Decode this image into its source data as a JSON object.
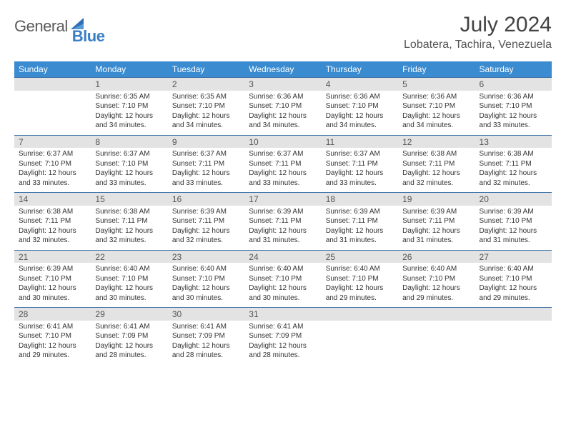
{
  "brand": {
    "part1": "General",
    "part2": "Blue"
  },
  "title": "July 2024",
  "location": "Lobatera, Tachira, Venezuela",
  "colors": {
    "header_bg": "#3a8bd0",
    "header_text": "#ffffff",
    "date_bg": "#e3e3e3",
    "row_border": "#3a6fa5",
    "logo_gray": "#5a5a5a",
    "logo_blue": "#3a7fc4"
  },
  "dayNames": [
    "Sunday",
    "Monday",
    "Tuesday",
    "Wednesday",
    "Thursday",
    "Friday",
    "Saturday"
  ],
  "weeks": [
    {
      "dates": [
        "",
        "1",
        "2",
        "3",
        "4",
        "5",
        "6"
      ],
      "cells": [
        null,
        {
          "sunrise": "6:35 AM",
          "sunset": "7:10 PM",
          "daylight": "12 hours and 34 minutes."
        },
        {
          "sunrise": "6:35 AM",
          "sunset": "7:10 PM",
          "daylight": "12 hours and 34 minutes."
        },
        {
          "sunrise": "6:36 AM",
          "sunset": "7:10 PM",
          "daylight": "12 hours and 34 minutes."
        },
        {
          "sunrise": "6:36 AM",
          "sunset": "7:10 PM",
          "daylight": "12 hours and 34 minutes."
        },
        {
          "sunrise": "6:36 AM",
          "sunset": "7:10 PM",
          "daylight": "12 hours and 34 minutes."
        },
        {
          "sunrise": "6:36 AM",
          "sunset": "7:10 PM",
          "daylight": "12 hours and 33 minutes."
        }
      ]
    },
    {
      "dates": [
        "7",
        "8",
        "9",
        "10",
        "11",
        "12",
        "13"
      ],
      "cells": [
        {
          "sunrise": "6:37 AM",
          "sunset": "7:10 PM",
          "daylight": "12 hours and 33 minutes."
        },
        {
          "sunrise": "6:37 AM",
          "sunset": "7:10 PM",
          "daylight": "12 hours and 33 minutes."
        },
        {
          "sunrise": "6:37 AM",
          "sunset": "7:11 PM",
          "daylight": "12 hours and 33 minutes."
        },
        {
          "sunrise": "6:37 AM",
          "sunset": "7:11 PM",
          "daylight": "12 hours and 33 minutes."
        },
        {
          "sunrise": "6:37 AM",
          "sunset": "7:11 PM",
          "daylight": "12 hours and 33 minutes."
        },
        {
          "sunrise": "6:38 AM",
          "sunset": "7:11 PM",
          "daylight": "12 hours and 32 minutes."
        },
        {
          "sunrise": "6:38 AM",
          "sunset": "7:11 PM",
          "daylight": "12 hours and 32 minutes."
        }
      ]
    },
    {
      "dates": [
        "14",
        "15",
        "16",
        "17",
        "18",
        "19",
        "20"
      ],
      "cells": [
        {
          "sunrise": "6:38 AM",
          "sunset": "7:11 PM",
          "daylight": "12 hours and 32 minutes."
        },
        {
          "sunrise": "6:38 AM",
          "sunset": "7:11 PM",
          "daylight": "12 hours and 32 minutes."
        },
        {
          "sunrise": "6:39 AM",
          "sunset": "7:11 PM",
          "daylight": "12 hours and 32 minutes."
        },
        {
          "sunrise": "6:39 AM",
          "sunset": "7:11 PM",
          "daylight": "12 hours and 31 minutes."
        },
        {
          "sunrise": "6:39 AM",
          "sunset": "7:11 PM",
          "daylight": "12 hours and 31 minutes."
        },
        {
          "sunrise": "6:39 AM",
          "sunset": "7:11 PM",
          "daylight": "12 hours and 31 minutes."
        },
        {
          "sunrise": "6:39 AM",
          "sunset": "7:10 PM",
          "daylight": "12 hours and 31 minutes."
        }
      ]
    },
    {
      "dates": [
        "21",
        "22",
        "23",
        "24",
        "25",
        "26",
        "27"
      ],
      "cells": [
        {
          "sunrise": "6:39 AM",
          "sunset": "7:10 PM",
          "daylight": "12 hours and 30 minutes."
        },
        {
          "sunrise": "6:40 AM",
          "sunset": "7:10 PM",
          "daylight": "12 hours and 30 minutes."
        },
        {
          "sunrise": "6:40 AM",
          "sunset": "7:10 PM",
          "daylight": "12 hours and 30 minutes."
        },
        {
          "sunrise": "6:40 AM",
          "sunset": "7:10 PM",
          "daylight": "12 hours and 30 minutes."
        },
        {
          "sunrise": "6:40 AM",
          "sunset": "7:10 PM",
          "daylight": "12 hours and 29 minutes."
        },
        {
          "sunrise": "6:40 AM",
          "sunset": "7:10 PM",
          "daylight": "12 hours and 29 minutes."
        },
        {
          "sunrise": "6:40 AM",
          "sunset": "7:10 PM",
          "daylight": "12 hours and 29 minutes."
        }
      ]
    },
    {
      "dates": [
        "28",
        "29",
        "30",
        "31",
        "",
        "",
        ""
      ],
      "cells": [
        {
          "sunrise": "6:41 AM",
          "sunset": "7:10 PM",
          "daylight": "12 hours and 29 minutes."
        },
        {
          "sunrise": "6:41 AM",
          "sunset": "7:09 PM",
          "daylight": "12 hours and 28 minutes."
        },
        {
          "sunrise": "6:41 AM",
          "sunset": "7:09 PM",
          "daylight": "12 hours and 28 minutes."
        },
        {
          "sunrise": "6:41 AM",
          "sunset": "7:09 PM",
          "daylight": "12 hours and 28 minutes."
        },
        null,
        null,
        null
      ]
    }
  ],
  "labels": {
    "sunrise": "Sunrise: ",
    "sunset": "Sunset: ",
    "daylight": "Daylight: "
  }
}
